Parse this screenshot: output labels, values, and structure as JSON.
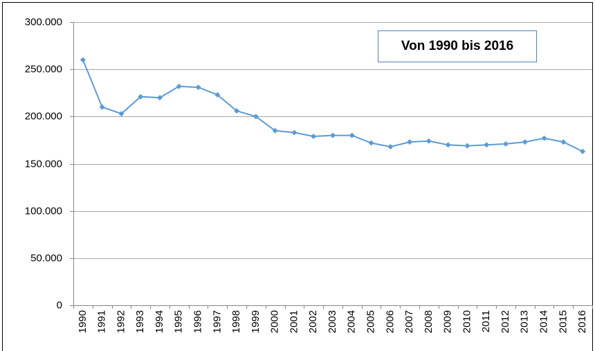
{
  "chart_data": {
    "type": "line",
    "annotation": "Von 1990 bis 2016",
    "categories": [
      "1990",
      "1991",
      "1992",
      "1993",
      "1994",
      "1995",
      "1996",
      "1997",
      "1998",
      "1999",
      "2000",
      "2001",
      "2002",
      "2003",
      "2004",
      "2005",
      "2006",
      "2007",
      "2008",
      "2009",
      "2010",
      "2011",
      "2012",
      "2013",
      "2014",
      "2015",
      "2016"
    ],
    "values": [
      260000,
      210000,
      203000,
      221000,
      220000,
      232000,
      231000,
      223000,
      206000,
      200000,
      185000,
      183000,
      179000,
      180000,
      180000,
      172000,
      168000,
      173000,
      174000,
      170000,
      169000,
      170000,
      171000,
      173000,
      177000,
      173000,
      163000
    ],
    "color": "#5b9bd5",
    "ylim": [
      0,
      300000
    ],
    "yticks": [
      0,
      {
        "value": 50000,
        "label": "50.000"
      },
      {
        "value": 100000,
        "label": "100.000"
      },
      {
        "value": 150000,
        "label": "150.000"
      },
      {
        "value": 200000,
        "label": "200.000"
      },
      {
        "value": 250000,
        "label": "250.000"
      },
      {
        "value": 300000,
        "label": "300.000"
      }
    ],
    "grid": true
  }
}
